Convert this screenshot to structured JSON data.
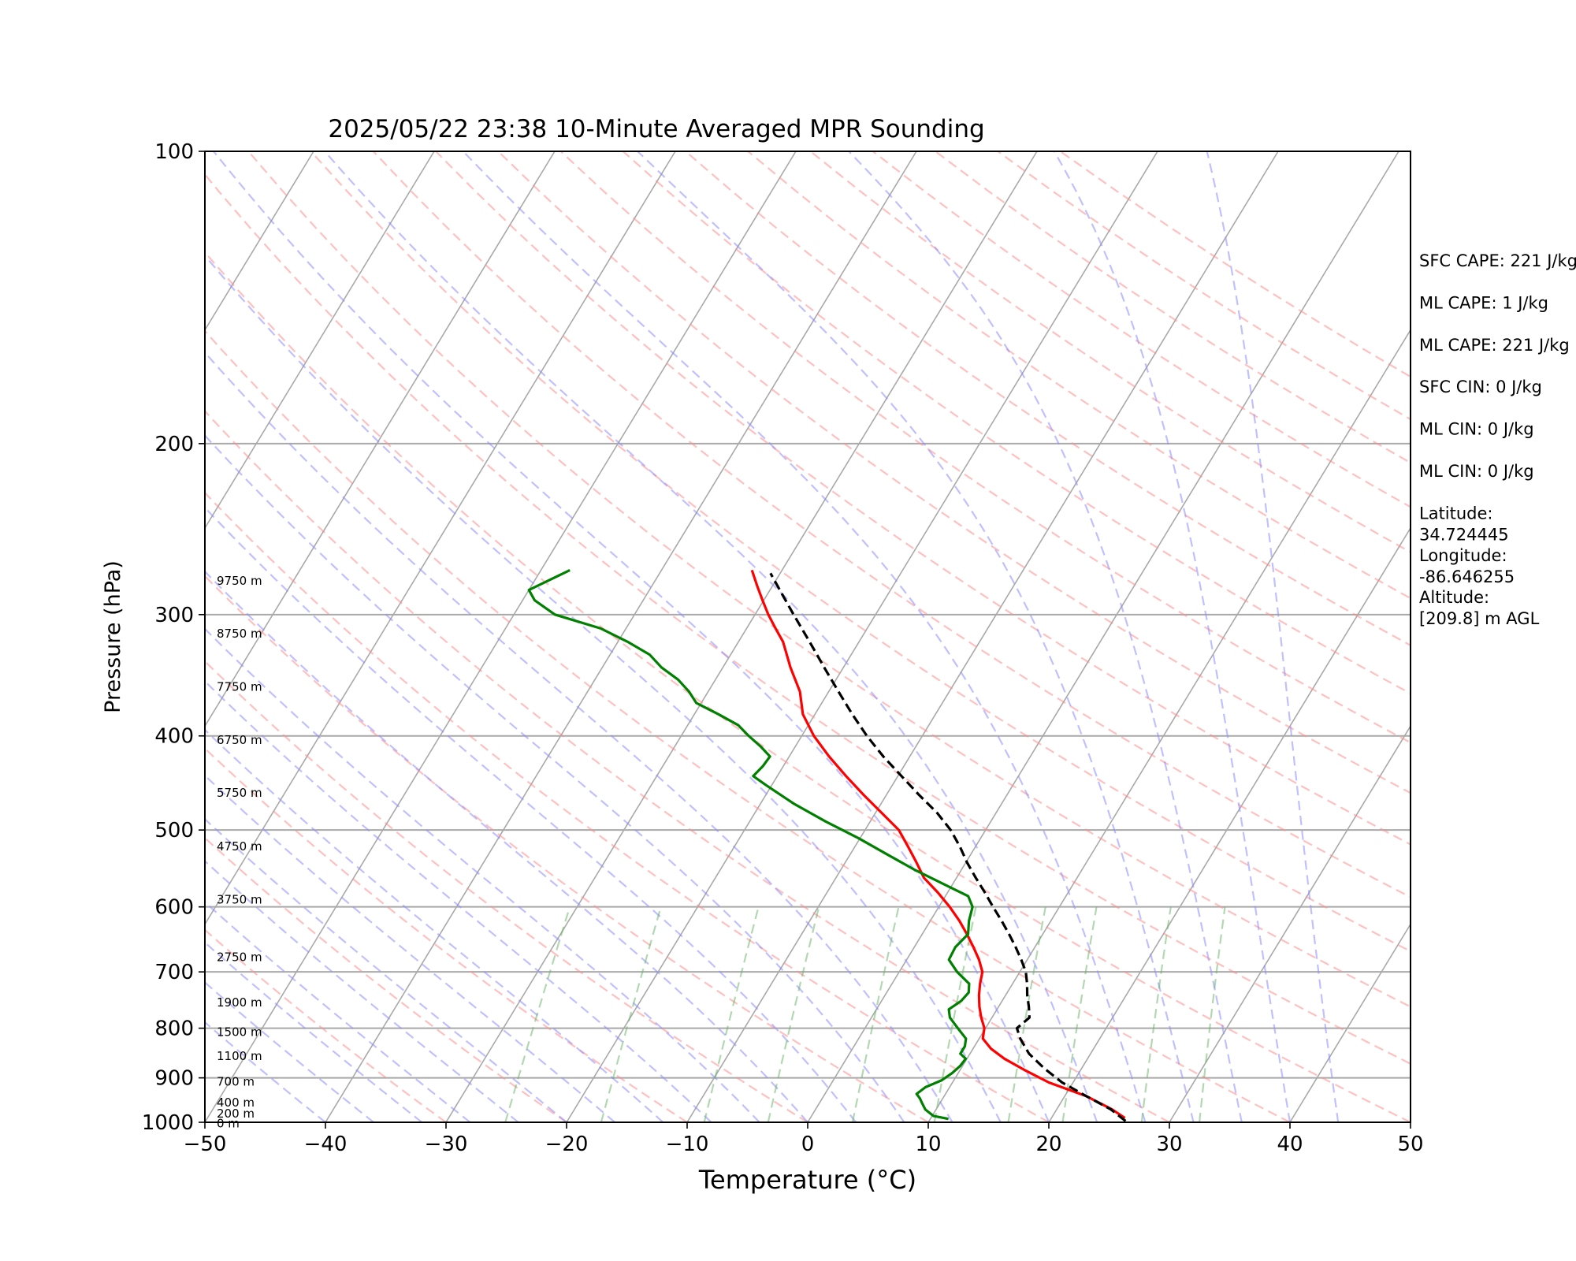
{
  "chart_data": {
    "type": "line",
    "title": "2025/05/22 23:38 10-Minute Averaged MPR Sounding",
    "xlabel": "Temperature (°C)",
    "ylabel": "Pressure (hPa)",
    "xlim": [
      -50,
      50
    ],
    "ylim": [
      1000,
      100
    ],
    "yscale": "log",
    "grid": "horizontal at labeled pressures; skewed isotherms",
    "x_ticks": [
      "−50",
      "−40",
      "−30",
      "−20",
      "−10",
      "0",
      "10",
      "20",
      "30",
      "40",
      "50"
    ],
    "y_ticks": [
      "100",
      "200",
      "300",
      "400",
      "500",
      "600",
      "700",
      "800",
      "900",
      "1000"
    ],
    "y_tick_values": [
      100,
      200,
      300,
      400,
      500,
      600,
      700,
      800,
      900,
      1000
    ],
    "height_labels": [
      {
        "label": "9750 m",
        "p": 277
      },
      {
        "label": "8750 m",
        "p": 314
      },
      {
        "label": "7750 m",
        "p": 356
      },
      {
        "label": "6750 m",
        "p": 404
      },
      {
        "label": "5750 m",
        "p": 458
      },
      {
        "label": "4750 m",
        "p": 520
      },
      {
        "label": "3750 m",
        "p": 590
      },
      {
        "label": "2750 m",
        "p": 676
      },
      {
        "label": "1900 m",
        "p": 753
      },
      {
        "label": "1500 m",
        "p": 807
      },
      {
        "label": "1100 m",
        "p": 855
      },
      {
        "label": "700 m",
        "p": 908
      },
      {
        "label": "400 m",
        "p": 954
      },
      {
        "label": "200 m",
        "p": 980
      },
      {
        "label": "0 m",
        "p": 1003
      }
    ],
    "series": [
      {
        "color": "#ff0000",
        "p": [
          990,
          970,
          940,
          910,
          885,
          860,
          840,
          820,
          800,
          780,
          760,
          740,
          720,
          700,
          680,
          660,
          640,
          620,
          600,
          580,
          560,
          540,
          520,
          500,
          480,
          460,
          440,
          420,
          400,
          380,
          360,
          340,
          320,
          310,
          300,
          290,
          280,
          270
        ],
        "t": [
          26.1,
          24.6,
          21.8,
          18.0,
          15.5,
          13.1,
          11.5,
          10.3,
          9.9,
          9.1,
          8.4,
          7.8,
          7.3,
          6.9,
          6.0,
          4.9,
          3.7,
          2.4,
          0.9,
          -0.8,
          -2.7,
          -4.1,
          -5.6,
          -7.2,
          -9.5,
          -11.9,
          -14.3,
          -16.7,
          -19.0,
          -21.0,
          -22.4,
          -24.4,
          -26.3,
          -27.6,
          -28.9,
          -30.1,
          -31.3,
          -32.5
        ]
      },
      {
        "color": "#000000",
        "dash": "dashed",
        "p": [
          997,
          970,
          940,
          910,
          880,
          850,
          820,
          800,
          780,
          760,
          740,
          720,
          700,
          680,
          660,
          640,
          620,
          600,
          580,
          560,
          540,
          520,
          500,
          480,
          460,
          440,
          420,
          400,
          380,
          360,
          340,
          320,
          300,
          285,
          272
        ],
        "t": [
          26.3,
          24.5,
          21.8,
          19.1,
          16.9,
          14.9,
          13.4,
          12.6,
          13.1,
          12.5,
          11.8,
          11.2,
          10.5,
          9.5,
          8.4,
          7.2,
          5.9,
          4.5,
          3.1,
          1.6,
          0.1,
          -1.3,
          -2.9,
          -4.9,
          -7.3,
          -9.7,
          -12.2,
          -14.6,
          -16.9,
          -19.2,
          -21.6,
          -24.1,
          -26.8,
          -28.9,
          -30.8
        ]
      },
      {
        "color": "#008000",
        "p": [
          992,
          985,
          970,
          955,
          945,
          935,
          920,
          905,
          890,
          875,
          860,
          850,
          835,
          820,
          800,
          780,
          765,
          750,
          735,
          720,
          700,
          680,
          660,
          640,
          620,
          600,
          585,
          570,
          550,
          530,
          510,
          490,
          470,
          450,
          440,
          430,
          420,
          410,
          400,
          390,
          380,
          370,
          360,
          350,
          340,
          330,
          320,
          310,
          300,
          290,
          283,
          270
        ],
        "td": [
          11.5,
          10.1,
          9.1,
          8.5,
          8.1,
          7.6,
          8.0,
          9.0,
          9.5,
          9.8,
          9.9,
          9.2,
          9.2,
          8.9,
          7.7,
          6.5,
          6.0,
          6.6,
          6.8,
          6.4,
          4.8,
          3.5,
          3.4,
          3.8,
          3.2,
          2.8,
          1.9,
          -0.5,
          -3.8,
          -6.9,
          -10.1,
          -13.7,
          -17.2,
          -20.4,
          -22.0,
          -21.7,
          -21.6,
          -22.9,
          -24.4,
          -25.8,
          -28.0,
          -30.4,
          -31.6,
          -33.1,
          -35.1,
          -36.7,
          -39.2,
          -42.1,
          -46.6,
          -49.0,
          -50.0,
          -47.6
        ]
      }
    ],
    "reference_lines": {
      "isotherms": {
        "color": "#a9a9a9",
        "style": "solid"
      },
      "dry_adiabats": {
        "color": "#ff8c8c",
        "style": "dashed"
      },
      "moist_adiabats": {
        "color": "#8c8cff",
        "style": "dashed"
      },
      "mixing_ratio_lines": {
        "color": "#66b266",
        "style": "dashed"
      }
    }
  },
  "annotations": [
    {
      "label": "SFC CAPE: 221 J/kg"
    },
    {
      "label": "ML CAPE: 1 J/kg"
    },
    {
      "label": "ML CAPE: 221 J/kg"
    },
    {
      "label": "SFC CIN: 0 J/kg"
    },
    {
      "label": "ML CIN: 0 J/kg"
    },
    {
      "label": "ML CIN: 0 J/kg"
    },
    {
      "label": "Latitude:",
      "value": "34.724445"
    },
    {
      "label": "Longitude:",
      "value": "-86.646255"
    },
    {
      "label": "Altitude:",
      "value": "[209.8] m AGL"
    }
  ]
}
